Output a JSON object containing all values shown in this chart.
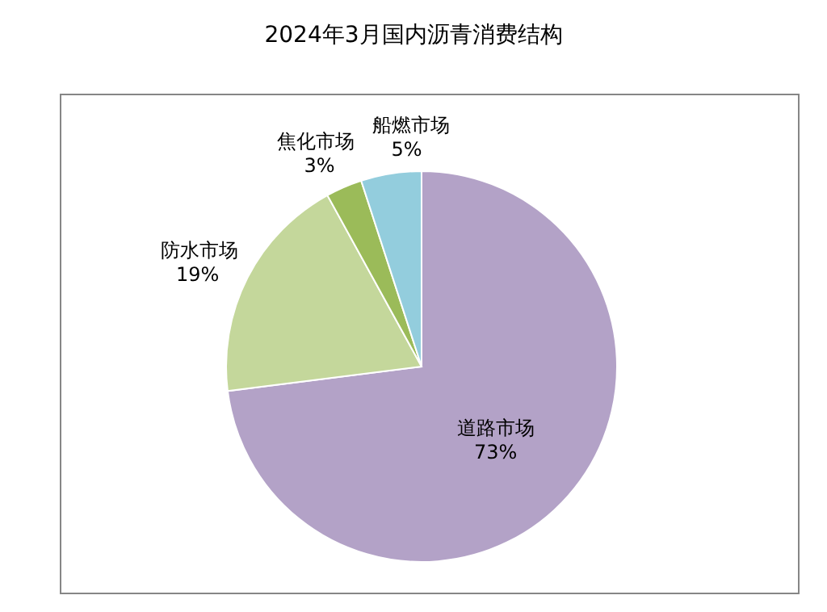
{
  "chart_data": {
    "type": "pie",
    "title": "2024年3月国内沥青消费结构",
    "categories": [
      "道路市场",
      "防水市场",
      "焦化市场",
      "船燃市场"
    ],
    "values": [
      73,
      19,
      3,
      5
    ],
    "colors": [
      "#b3a2c7",
      "#c4d79b",
      "#9bbb59",
      "#93cddd"
    ],
    "value_labels": [
      "73%",
      "19%",
      "3%",
      "5%"
    ]
  }
}
